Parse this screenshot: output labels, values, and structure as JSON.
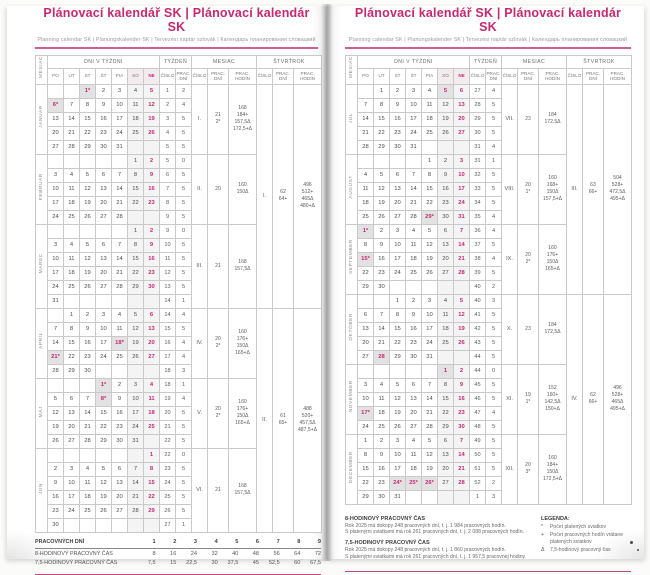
{
  "page_title": "Plánovací kalendář SK | Plánovací kalendár SK",
  "subtitle": "Planning calendar SK | Planungskalender SK | Tervezési naptár szlovák | Календарь планирования словацкий",
  "colors": {
    "accent": "#c5296f",
    "holiday_bg": "#e2e2e2",
    "weekend_bg": "#f5f4f4"
  },
  "table_header": {
    "month_col": "MESIAC",
    "days_group": "DNI V TÝŽDNI",
    "day_names": [
      "PO",
      "UT",
      "ST",
      "ŠT",
      "PIA",
      "SO",
      "NE"
    ],
    "week_group": "TÝŽDEŇ",
    "week_cols": [
      "ČÍSLO",
      "PRAC. DNÍ"
    ],
    "month_group": "MESIAC",
    "month_cols": [
      "ČÍSLO",
      "PRAC. DNÍ",
      "PRAC. HODÍN"
    ],
    "quarter_group": "ŠTVRŤROK",
    "quarter_cols": [
      "ČÍSLO",
      "PRAC. DNÍ",
      "PRAC. HODÍN"
    ]
  },
  "pages": {
    "left_months": [
      0,
      1,
      2,
      3,
      4,
      5
    ],
    "right_months": [
      6,
      7,
      8,
      9,
      10,
      11
    ]
  },
  "months": [
    {
      "name": "JANUÁR",
      "num": "I.",
      "days": [
        "21",
        "2*"
      ],
      "hours": [
        "168",
        "184+",
        "157,5Δ",
        "172,5+Δ"
      ],
      "highlight": [],
      "weeks": [
        {
          "d": [
            "",
            "",
            "1*",
            "2",
            "3",
            "4",
            "5"
          ],
          "w": "1",
          "pd": "2"
        },
        {
          "d": [
            "6*",
            "7",
            "8",
            "9",
            "10",
            "11",
            "12"
          ],
          "w": "2",
          "pd": "4"
        },
        {
          "d": [
            "13",
            "14",
            "15",
            "16",
            "17",
            "18",
            "19"
          ],
          "w": "3",
          "pd": "5"
        },
        {
          "d": [
            "20",
            "21",
            "22",
            "23",
            "24",
            "25",
            "26"
          ],
          "w": "4",
          "pd": "5"
        },
        {
          "d": [
            "27",
            "28",
            "29",
            "30",
            "31",
            "",
            ""
          ],
          "w": "5",
          "pd": "5"
        }
      ]
    },
    {
      "name": "FEBRUÁR",
      "num": "II.",
      "days": [
        "20"
      ],
      "hours": [
        "160",
        "150Δ"
      ],
      "highlight": [],
      "weeks": [
        {
          "d": [
            "",
            "",
            "",
            "",
            "",
            "1",
            "2"
          ],
          "w": "5",
          "pd": "0"
        },
        {
          "d": [
            "3",
            "4",
            "5",
            "6",
            "7",
            "8",
            "9"
          ],
          "w": "6",
          "pd": "5"
        },
        {
          "d": [
            "10",
            "11",
            "12",
            "13",
            "14",
            "15",
            "16"
          ],
          "w": "7",
          "pd": "5"
        },
        {
          "d": [
            "17",
            "18",
            "19",
            "20",
            "21",
            "22",
            "23"
          ],
          "w": "8",
          "pd": "5"
        },
        {
          "d": [
            "24",
            "25",
            "26",
            "27",
            "28",
            "",
            ""
          ],
          "w": "9",
          "pd": "5"
        }
      ]
    },
    {
      "name": "MAREC",
      "num": "III.",
      "days": [
        "21"
      ],
      "hours": [
        "168",
        "157,5Δ"
      ],
      "highlight": [],
      "weeks": [
        {
          "d": [
            "",
            "",
            "",
            "",
            "",
            "1",
            "2"
          ],
          "w": "9",
          "pd": "0"
        },
        {
          "d": [
            "3",
            "4",
            "5",
            "6",
            "7",
            "8",
            "9"
          ],
          "w": "10",
          "pd": "5"
        },
        {
          "d": [
            "10",
            "11",
            "12",
            "13",
            "14",
            "15",
            "16"
          ],
          "w": "11",
          "pd": "5"
        },
        {
          "d": [
            "17",
            "18",
            "19",
            "20",
            "21",
            "22",
            "23"
          ],
          "w": "12",
          "pd": "5"
        },
        {
          "d": [
            "24",
            "25",
            "26",
            "27",
            "28",
            "29",
            "30"
          ],
          "w": "13",
          "pd": "5"
        },
        {
          "d": [
            "31",
            "",
            "",
            "",
            "",
            "",
            ""
          ],
          "w": "14",
          "pd": "1"
        }
      ]
    },
    {
      "name": "APRÍL",
      "num": "IV.",
      "days": [
        "20",
        "2*"
      ],
      "hours": [
        "160",
        "176+",
        "150Δ",
        "165+Δ"
      ],
      "highlight": [],
      "weeks": [
        {
          "d": [
            "",
            "1",
            "2",
            "3",
            "4",
            "5",
            "6"
          ],
          "w": "14",
          "pd": "4"
        },
        {
          "d": [
            "7",
            "8",
            "9",
            "10",
            "11",
            "12",
            "13"
          ],
          "w": "15",
          "pd": "5"
        },
        {
          "d": [
            "14",
            "15",
            "16",
            "17",
            "18*",
            "19",
            "20"
          ],
          "w": "16",
          "pd": "4"
        },
        {
          "d": [
            "21*",
            "22",
            "23",
            "24",
            "25",
            "26",
            "27"
          ],
          "w": "17",
          "pd": "4"
        },
        {
          "d": [
            "28",
            "29",
            "30",
            "",
            "",
            "",
            ""
          ],
          "w": "18",
          "pd": "3"
        }
      ]
    },
    {
      "name": "MÁJ",
      "num": "V.",
      "days": [
        "20",
        "2*"
      ],
      "hours": [
        "160",
        "176+",
        "150Δ",
        "165+Δ"
      ],
      "highlight": [],
      "weeks": [
        {
          "d": [
            "",
            "",
            "",
            "1*",
            "2",
            "3",
            "4"
          ],
          "w": "18",
          "pd": "1"
        },
        {
          "d": [
            "5",
            "6",
            "7",
            "8*",
            "9",
            "10",
            "11"
          ],
          "w": "19",
          "pd": "4"
        },
        {
          "d": [
            "12",
            "13",
            "14",
            "15",
            "16",
            "17",
            "18"
          ],
          "w": "20",
          "pd": "5"
        },
        {
          "d": [
            "19",
            "20",
            "21",
            "22",
            "23",
            "24",
            "25"
          ],
          "w": "21",
          "pd": "5"
        },
        {
          "d": [
            "26",
            "27",
            "28",
            "29",
            "30",
            "31",
            ""
          ],
          "w": "22",
          "pd": "5"
        }
      ]
    },
    {
      "name": "JÚN",
      "num": "VI.",
      "days": [
        "21"
      ],
      "hours": [
        "168",
        "157,5Δ"
      ],
      "highlight": [],
      "weeks": [
        {
          "d": [
            "",
            "",
            "",
            "",
            "",
            "",
            "1"
          ],
          "w": "22",
          "pd": "0"
        },
        {
          "d": [
            "2",
            "3",
            "4",
            "5",
            "6",
            "7",
            "8"
          ],
          "w": "23",
          "pd": "5"
        },
        {
          "d": [
            "9",
            "10",
            "11",
            "12",
            "13",
            "14",
            "15"
          ],
          "w": "24",
          "pd": "5"
        },
        {
          "d": [
            "16",
            "17",
            "18",
            "19",
            "20",
            "21",
            "22"
          ],
          "w": "25",
          "pd": "5"
        },
        {
          "d": [
            "23",
            "24",
            "25",
            "26",
            "27",
            "28",
            "29"
          ],
          "w": "26",
          "pd": "5"
        },
        {
          "d": [
            "30",
            "",
            "",
            "",
            "",
            "",
            ""
          ],
          "w": "27",
          "pd": "1"
        }
      ]
    },
    {
      "name": "JÚL",
      "num": "VII.",
      "days": [
        "23"
      ],
      "hours": [
        "184",
        "172,5Δ"
      ],
      "highlight": [
        "5"
      ],
      "weeks": [
        {
          "d": [
            "",
            "1",
            "2",
            "3",
            "4",
            "5",
            "6"
          ],
          "w": "27",
          "pd": "4"
        },
        {
          "d": [
            "7",
            "8",
            "9",
            "10",
            "11",
            "12",
            "13"
          ],
          "w": "28",
          "pd": "5"
        },
        {
          "d": [
            "14",
            "15",
            "16",
            "17",
            "18",
            "19",
            "20"
          ],
          "w": "29",
          "pd": "5"
        },
        {
          "d": [
            "21",
            "22",
            "23",
            "24",
            "25",
            "26",
            "27"
          ],
          "w": "30",
          "pd": "5"
        },
        {
          "d": [
            "28",
            "29",
            "30",
            "31",
            "",
            "",
            ""
          ],
          "w": "31",
          "pd": "4"
        }
      ]
    },
    {
      "name": "AUGUST",
      "num": "VIII.",
      "days": [
        "20",
        "1*"
      ],
      "hours": [
        "160",
        "168+",
        "150Δ",
        "157,5+Δ"
      ],
      "highlight": [],
      "weeks": [
        {
          "d": [
            "",
            "",
            "",
            "",
            "1",
            "2",
            "3"
          ],
          "w": "31",
          "pd": "1"
        },
        {
          "d": [
            "4",
            "5",
            "6",
            "7",
            "8",
            "9",
            "10"
          ],
          "w": "32",
          "pd": "5"
        },
        {
          "d": [
            "11",
            "12",
            "13",
            "14",
            "15",
            "16",
            "17"
          ],
          "w": "33",
          "pd": "5"
        },
        {
          "d": [
            "18",
            "19",
            "20",
            "21",
            "22",
            "23",
            "24"
          ],
          "w": "34",
          "pd": "5"
        },
        {
          "d": [
            "25",
            "26",
            "27",
            "28",
            "29*",
            "30",
            "31"
          ],
          "w": "35",
          "pd": "4"
        }
      ]
    },
    {
      "name": "SEPTEMBER",
      "num": "IX.",
      "days": [
        "20",
        "2*"
      ],
      "hours": [
        "160",
        "176+",
        "150Δ",
        "165+Δ"
      ],
      "highlight": [],
      "weeks": [
        {
          "d": [
            "1*",
            "2",
            "3",
            "4",
            "5",
            "6",
            "7"
          ],
          "w": "36",
          "pd": "4"
        },
        {
          "d": [
            "8",
            "9",
            "10",
            "11",
            "12",
            "13",
            "14"
          ],
          "w": "37",
          "pd": "5"
        },
        {
          "d": [
            "15*",
            "16",
            "17",
            "18",
            "19",
            "20",
            "21"
          ],
          "w": "38",
          "pd": "4"
        },
        {
          "d": [
            "22",
            "23",
            "24",
            "25",
            "26",
            "27",
            "28"
          ],
          "w": "39",
          "pd": "5"
        },
        {
          "d": [
            "29",
            "30",
            "",
            "",
            "",
            "",
            ""
          ],
          "w": "40",
          "pd": "2"
        }
      ]
    },
    {
      "name": "OKTÓBER",
      "num": "X.",
      "days": [
        "23"
      ],
      "hours": [
        "184",
        "172,5Δ"
      ],
      "highlight": [
        "28"
      ],
      "weeks": [
        {
          "d": [
            "",
            "",
            "1",
            "2",
            "3",
            "4",
            "5"
          ],
          "w": "40",
          "pd": "3"
        },
        {
          "d": [
            "6",
            "7",
            "8",
            "9",
            "10",
            "11",
            "12"
          ],
          "w": "41",
          "pd": "5"
        },
        {
          "d": [
            "13",
            "14",
            "15",
            "16",
            "17",
            "18",
            "19"
          ],
          "w": "42",
          "pd": "5"
        },
        {
          "d": [
            "20",
            "21",
            "22",
            "23",
            "24",
            "25",
            "26"
          ],
          "w": "43",
          "pd": "5"
        },
        {
          "d": [
            "27",
            "28",
            "29",
            "30",
            "31",
            "",
            ""
          ],
          "w": "44",
          "pd": "5"
        }
      ]
    },
    {
      "name": "NOVEMBER",
      "num": "XI.",
      "days": [
        "19",
        "1*"
      ],
      "hours": [
        "152",
        "160+",
        "142,5Δ",
        "150+Δ"
      ],
      "highlight": [
        "1"
      ],
      "weeks": [
        {
          "d": [
            "",
            "",
            "",
            "",
            "",
            "1",
            "2"
          ],
          "w": "44",
          "pd": "0"
        },
        {
          "d": [
            "3",
            "4",
            "5",
            "6",
            "7",
            "8",
            "9"
          ],
          "w": "45",
          "pd": "5"
        },
        {
          "d": [
            "10",
            "11",
            "12",
            "13",
            "14",
            "15",
            "16"
          ],
          "w": "46",
          "pd": "5"
        },
        {
          "d": [
            "17*",
            "18",
            "19",
            "20",
            "21",
            "22",
            "23"
          ],
          "w": "47",
          "pd": "4"
        },
        {
          "d": [
            "24",
            "25",
            "26",
            "27",
            "28",
            "29",
            "30"
          ],
          "w": "48",
          "pd": "5"
        }
      ]
    },
    {
      "name": "DECEMBER",
      "num": "XII.",
      "days": [
        "20",
        "3*"
      ],
      "hours": [
        "160",
        "184+",
        "150Δ",
        "172,5+Δ"
      ],
      "highlight": [],
      "weeks": [
        {
          "d": [
            "1",
            "2",
            "3",
            "4",
            "5",
            "6",
            "7"
          ],
          "w": "49",
          "pd": "5"
        },
        {
          "d": [
            "8",
            "9",
            "10",
            "11",
            "12",
            "13",
            "14"
          ],
          "w": "50",
          "pd": "5"
        },
        {
          "d": [
            "15",
            "16",
            "17",
            "18",
            "19",
            "20",
            "21"
          ],
          "w": "51",
          "pd": "5"
        },
        {
          "d": [
            "22",
            "23",
            "24*",
            "25*",
            "26*",
            "27",
            "28"
          ],
          "w": "52",
          "pd": "2"
        },
        {
          "d": [
            "29",
            "30",
            "31",
            "",
            "",
            "",
            ""
          ],
          "w": "1",
          "pd": "3"
        }
      ]
    }
  ],
  "quarters": [
    {
      "num": "I.",
      "days": [
        "62",
        "64+"
      ],
      "hours": [
        "496",
        "512+",
        "465Δ",
        "480+Δ"
      ]
    },
    {
      "num": "II.",
      "days": [
        "61",
        "65+"
      ],
      "hours": [
        "488",
        "520+",
        "457,5Δ",
        "487,5+Δ"
      ]
    },
    {
      "num": "III.",
      "days": [
        "63",
        "66+"
      ],
      "hours": [
        "504",
        "528+",
        "472,5Δ",
        "495+Δ"
      ]
    },
    {
      "num": "IV.",
      "days": [
        "62",
        "66+"
      ],
      "hours": [
        "496",
        "528+",
        "465Δ",
        "495+Δ"
      ]
    }
  ],
  "worked_days_table": {
    "title": "PRACOVNÝCH DNÍ",
    "columns": [
      "1",
      "2",
      "3",
      "4",
      "5",
      "6",
      "7",
      "8",
      "9"
    ],
    "rows": [
      {
        "label": "8-HODINOVÝ PRACOVNÝ ČAS",
        "values": [
          "8",
          "16",
          "24",
          "32",
          "40",
          "48",
          "56",
          "64",
          "72"
        ]
      },
      {
        "label": "7,5-HODINOVÝ PRACOVNÝ ČAS",
        "values": [
          "7,5",
          "15",
          "22,5",
          "30",
          "37,5",
          "45",
          "52,5",
          "60",
          "67,5"
        ]
      }
    ]
  },
  "year_summary": [
    {
      "heading": "8-HODINOVÝ PRACOVNÝ ČAS",
      "lines": [
        "Rok 2025 má dokopy 248 pracovných dní, t. j. 1 984 pracovných hodín.",
        "S platenými sviatkami má rok 261 pracovných dní, t. j. 2 088 pracovných hodín."
      ]
    },
    {
      "heading": "7,5-HODINOVÝ PRACOVNÝ ČAS",
      "lines": [
        "Rok 2025 má dokopy 248 pracovných dní, t. j. 1 860 pracovných hodín.",
        "S platenými sviatkami má rok 261 pracovných dní, t. j. 1 957,5 pracovnej hodiny."
      ]
    }
  ],
  "legend": {
    "title": "LEGENDA:",
    "items": [
      {
        "symbol": "*",
        "text": "Počet platených sviatkov"
      },
      {
        "symbol": "+",
        "text": "Počet pracovných hodín vrátane platených sviatkov"
      },
      {
        "symbol": "Δ",
        "text": "7,5-hodinový pracovný čas"
      }
    ]
  }
}
